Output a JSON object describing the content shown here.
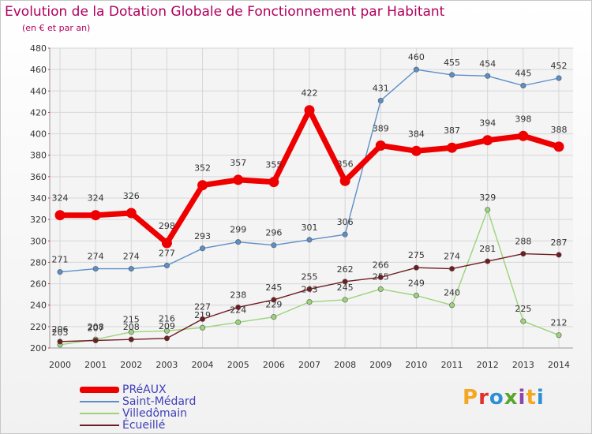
{
  "header": {
    "title": "Evolution de la Dotation Globale de Fonctionnement par Habitant",
    "subtitle": "(en € et par an)"
  },
  "logo": {
    "text": "Proxiti",
    "colors": [
      "#f5a623",
      "#e0312c",
      "#2d8fd4",
      "#5aa62d",
      "#8e44ad",
      "#f5a623",
      "#2d8fd4"
    ]
  },
  "chart_data": {
    "type": "line",
    "x": [
      2000,
      2001,
      2002,
      2003,
      2004,
      2005,
      2006,
      2007,
      2008,
      2009,
      2010,
      2011,
      2012,
      2013,
      2014
    ],
    "ylim": [
      200,
      480
    ],
    "yticks": [
      200,
      220,
      240,
      260,
      280,
      300,
      320,
      340,
      360,
      380,
      400,
      420,
      440,
      460,
      480
    ],
    "grid": true,
    "legend_position": "bottom-left",
    "series": [
      {
        "name": "Saint-Médard",
        "color": "#5b8fc8",
        "values": [
          271,
          274,
          274,
          277,
          293,
          299,
          296,
          301,
          306,
          431,
          460,
          455,
          454,
          445,
          452
        ]
      },
      {
        "name": "Villedômain",
        "color": "#9bd47a",
        "values": [
          203,
          208,
          215,
          216,
          219,
          224,
          229,
          243,
          245,
          255,
          249,
          240,
          329,
          225,
          212
        ]
      },
      {
        "name": "Écueillé",
        "color": "#6e1d22",
        "values": [
          206,
          207,
          208,
          209,
          227,
          238,
          245,
          255,
          262,
          266,
          275,
          274,
          281,
          288,
          287
        ]
      },
      {
        "name": "PRéAUX",
        "color": "#ee0000",
        "values": [
          324,
          324,
          326,
          298,
          352,
          357,
          355,
          422,
          356,
          389,
          384,
          387,
          394,
          398,
          388
        ]
      }
    ],
    "legend": [
      {
        "name": "PRéAUX",
        "color": "#ee0000"
      },
      {
        "name": "Saint-Médard",
        "color": "#5b8fc8"
      },
      {
        "name": "Villedômain",
        "color": "#9bd47a"
      },
      {
        "name": "Écueillé",
        "color": "#6e1d22"
      }
    ]
  }
}
